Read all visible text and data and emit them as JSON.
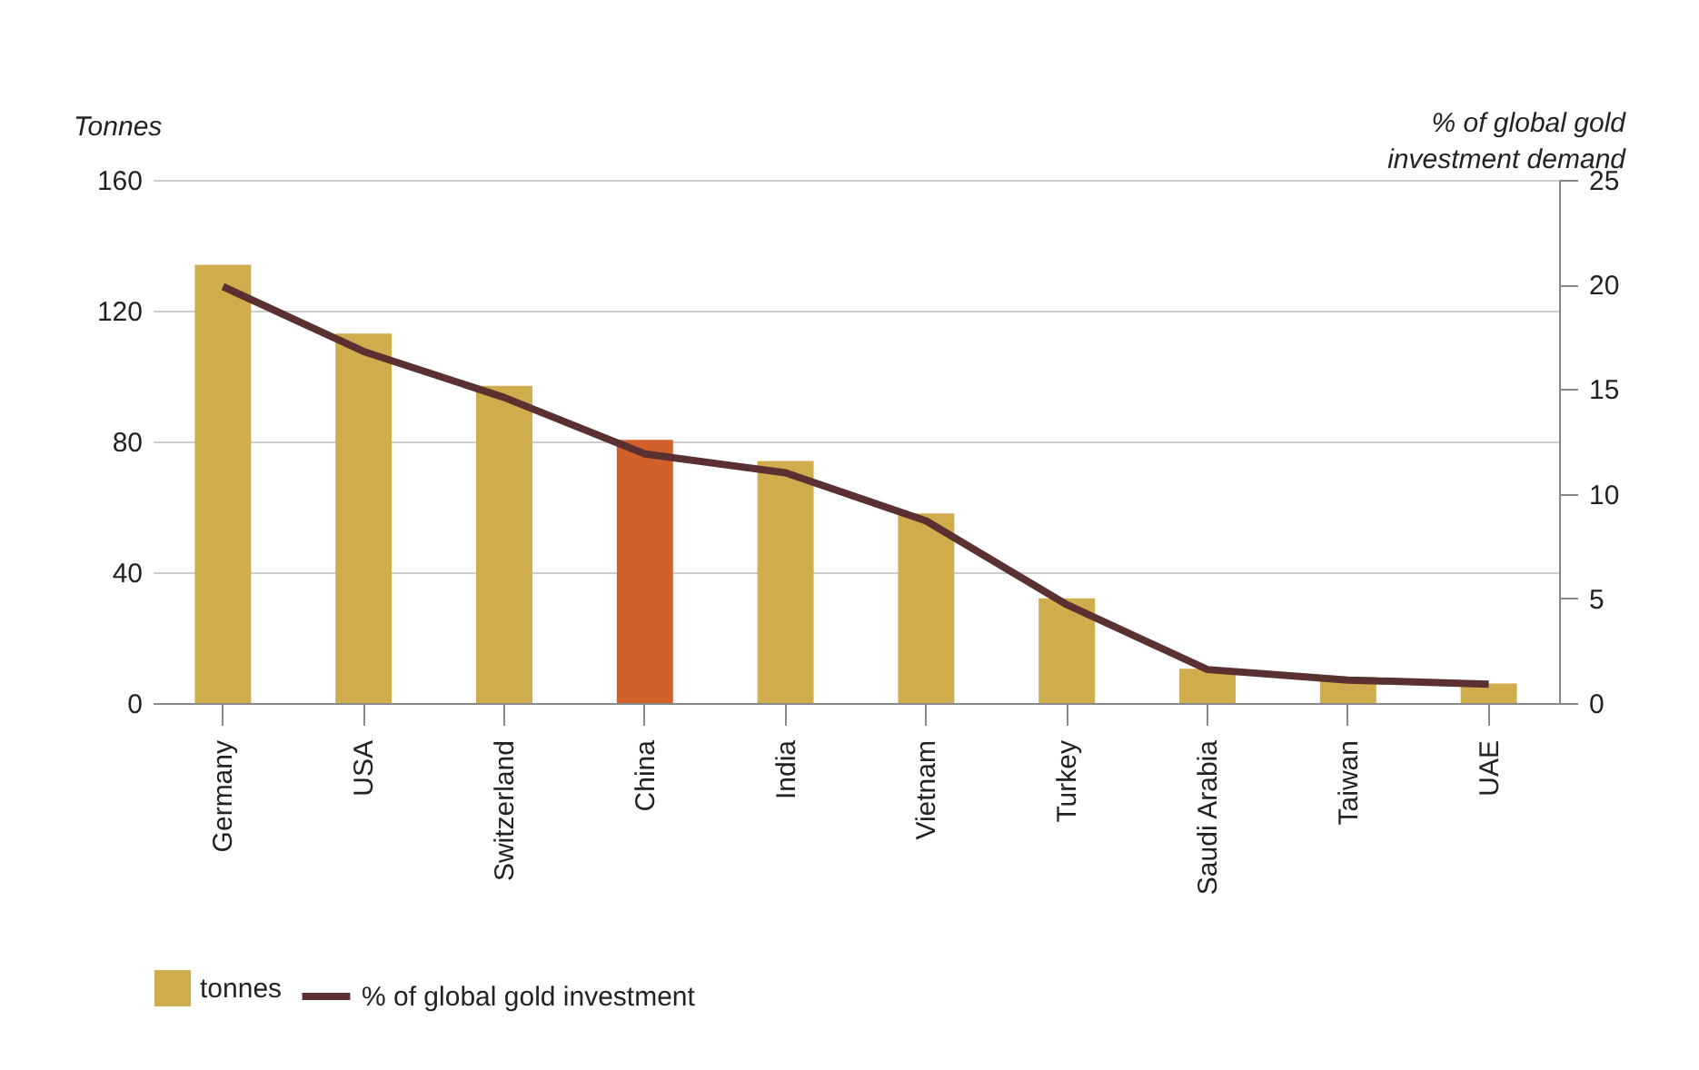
{
  "chart_data": {
    "type": "bar",
    "ylabel": "Tonnes",
    "y2label": "% of global gold investment demand",
    "categories": [
      "Germany",
      "USA",
      "Switzerland",
      "China",
      "India",
      "Vietnam",
      "Turkey",
      "Saudi Arabia",
      "Taiwan",
      "UAE"
    ],
    "series": [
      {
        "name": "tonnes",
        "color": "#cfac4c",
        "colors": [
          "#cfac4c",
          "#cfac4c",
          "#cfac4c",
          "#d2602a",
          "#cfac4c",
          "#cfac4c",
          "#cfac4c",
          "#cfac4c",
          "#cfac4c",
          "#cfac4c"
        ],
        "values": [
          134,
          113,
          97,
          80.5,
          74,
          58,
          32,
          10.5,
          8,
          6
        ]
      },
      {
        "name": "% of global gold investment",
        "type": "line",
        "axis": "y2",
        "color": "#5a3030",
        "values": [
          19.9,
          16.8,
          14.6,
          11.9,
          11.0,
          8.7,
          4.7,
          1.6,
          1.1,
          0.9
        ]
      }
    ],
    "ylim": [
      0,
      160
    ],
    "yticks": [
      0,
      40,
      80,
      120,
      160
    ],
    "y2lim": [
      0,
      25
    ],
    "y2ticks": [
      0,
      5,
      10,
      15,
      20,
      25
    ],
    "grid": "y",
    "legend": "bottom left"
  }
}
